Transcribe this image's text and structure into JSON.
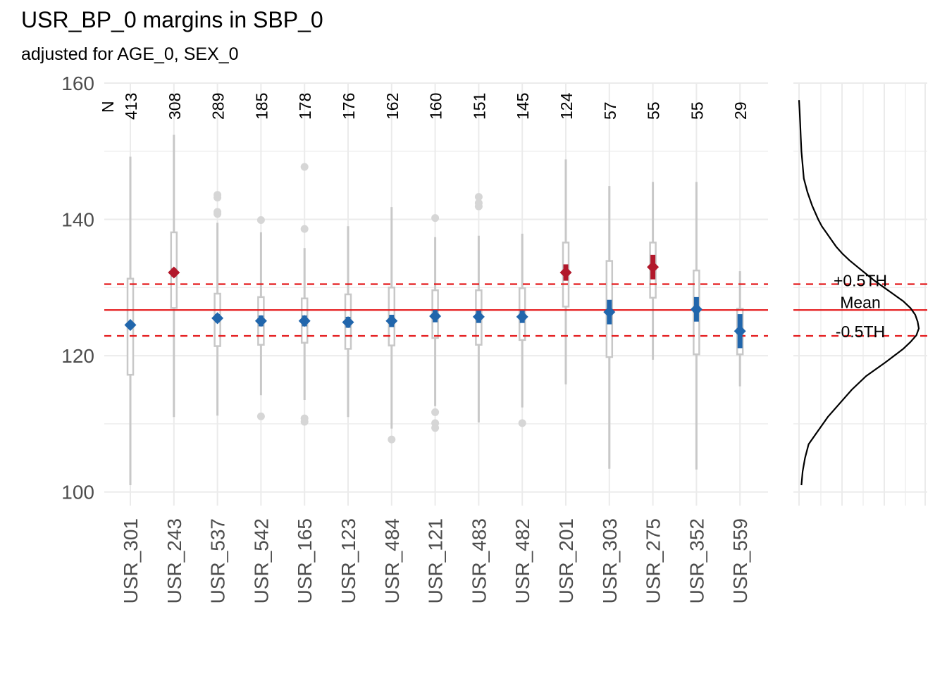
{
  "chart_data": {
    "type": "boxplot",
    "title": "USR_BP_0 margins in SBP_0",
    "subtitle": "adjusted for AGE_0, SEX_0",
    "n_header": "N",
    "ylim": [
      98,
      160
    ],
    "yticks": [
      100,
      120,
      140,
      160
    ],
    "colors": {
      "above": "#b2182b",
      "below": "#2166ac",
      "reference": "#e41a1c",
      "box": "#c8c8c8",
      "grid": "#ebebeb",
      "density": "#000000"
    },
    "reference": {
      "mean": 126.7,
      "upper": 130.5,
      "lower": 122.9,
      "labels": {
        "upper": "+0.5TH",
        "mean": "Mean",
        "lower": "-0.5TH"
      }
    },
    "groups": [
      {
        "name": "USR_301",
        "n": "413",
        "estimate": 124.5,
        "ci": [
          124.0,
          125.0
        ],
        "q1": 117.2,
        "q3": 131.3,
        "wlo": 101.0,
        "whi": 149.2,
        "outliers": [],
        "flag": "below"
      },
      {
        "name": "USR_243",
        "n": "308",
        "estimate": 132.2,
        "ci": [
          131.6,
          132.8
        ],
        "q1": 127.0,
        "q3": 138.1,
        "wlo": 111.0,
        "whi": 152.4,
        "outliers": [],
        "flag": "above"
      },
      {
        "name": "USR_537",
        "n": "289",
        "estimate": 125.5,
        "ci": [
          124.9,
          126.1
        ],
        "q1": 121.4,
        "q3": 129.1,
        "wlo": 111.2,
        "whi": 139.5,
        "outliers": [
          143.6,
          143.2,
          141.1,
          140.8
        ],
        "flag": "below"
      },
      {
        "name": "USR_542",
        "n": "185",
        "estimate": 125.1,
        "ci": [
          124.3,
          125.9
        ],
        "q1": 121.6,
        "q3": 128.6,
        "wlo": 114.2,
        "whi": 138.1,
        "outliers": [
          139.9,
          111.1
        ],
        "flag": "below"
      },
      {
        "name": "USR_165",
        "n": "178",
        "estimate": 125.1,
        "ci": [
          124.3,
          125.9
        ],
        "q1": 121.9,
        "q3": 128.4,
        "wlo": 113.5,
        "whi": 135.8,
        "outliers": [
          147.7,
          138.6,
          110.8,
          110.3
        ],
        "flag": "below"
      },
      {
        "name": "USR_123",
        "n": "176",
        "estimate": 124.9,
        "ci": [
          124.1,
          125.7
        ],
        "q1": 121.0,
        "q3": 129.0,
        "wlo": 111.0,
        "whi": 139.0,
        "outliers": [],
        "flag": "below"
      },
      {
        "name": "USR_484",
        "n": "162",
        "estimate": 125.1,
        "ci": [
          124.2,
          126.0
        ],
        "q1": 121.5,
        "q3": 130.0,
        "wlo": 109.3,
        "whi": 141.8,
        "outliers": [
          107.7
        ],
        "flag": "below"
      },
      {
        "name": "USR_121",
        "n": "160",
        "estimate": 125.8,
        "ci": [
          124.9,
          126.7
        ],
        "q1": 122.6,
        "q3": 129.6,
        "wlo": 112.6,
        "whi": 137.4,
        "outliers": [
          140.2,
          111.7,
          110.1,
          109.4
        ],
        "flag": "below"
      },
      {
        "name": "USR_483",
        "n": "151",
        "estimate": 125.7,
        "ci": [
          124.8,
          126.6
        ],
        "q1": 121.6,
        "q3": 129.6,
        "wlo": 110.2,
        "whi": 137.6,
        "outliers": [
          143.3,
          142.4,
          141.9
        ],
        "flag": "below"
      },
      {
        "name": "USR_482",
        "n": "145",
        "estimate": 125.7,
        "ci": [
          124.8,
          126.6
        ],
        "q1": 122.3,
        "q3": 129.9,
        "wlo": 112.4,
        "whi": 137.9,
        "outliers": [
          110.1
        ],
        "flag": "below"
      },
      {
        "name": "USR_201",
        "n": "124",
        "estimate": 132.2,
        "ci": [
          131.0,
          133.4
        ],
        "q1": 127.2,
        "q3": 136.6,
        "wlo": 115.8,
        "whi": 148.8,
        "outliers": [],
        "flag": "above"
      },
      {
        "name": "USR_303",
        "n": "57",
        "estimate": 126.4,
        "ci": [
          124.6,
          128.2
        ],
        "q1": 119.8,
        "q3": 133.9,
        "wlo": 103.4,
        "whi": 144.9,
        "outliers": [],
        "flag": "below"
      },
      {
        "name": "USR_275",
        "n": "55",
        "estimate": 133.0,
        "ci": [
          131.2,
          134.8
        ],
        "q1": 128.5,
        "q3": 136.6,
        "wlo": 119.4,
        "whi": 145.5,
        "outliers": [],
        "flag": "above"
      },
      {
        "name": "USR_352",
        "n": "55",
        "estimate": 126.8,
        "ci": [
          125.0,
          128.6
        ],
        "q1": 120.2,
        "q3": 132.5,
        "wlo": 103.3,
        "whi": 145.5,
        "outliers": [],
        "flag": "below"
      },
      {
        "name": "USR_559",
        "n": "29",
        "estimate": 123.6,
        "ci": [
          121.1,
          126.1
        ],
        "q1": 120.2,
        "q3": 126.9,
        "wlo": 115.5,
        "whi": 132.4,
        "outliers": [],
        "flag": "below"
      }
    ],
    "density": {
      "y": [
        101,
        103,
        105,
        107,
        109,
        111,
        113,
        115,
        117,
        119,
        121,
        122,
        123,
        124,
        125,
        126,
        127,
        128,
        129,
        130,
        131,
        132,
        133,
        134,
        135,
        136,
        137,
        138,
        139,
        140,
        142,
        144,
        146,
        148,
        150,
        152,
        154,
        156,
        157.5
      ],
      "d": [
        0.02,
        0.03,
        0.05,
        0.08,
        0.16,
        0.24,
        0.34,
        0.44,
        0.56,
        0.72,
        0.87,
        0.93,
        0.98,
        1.0,
        0.99,
        0.97,
        0.93,
        0.87,
        0.79,
        0.71,
        0.63,
        0.56,
        0.49,
        0.42,
        0.36,
        0.31,
        0.27,
        0.23,
        0.19,
        0.16,
        0.11,
        0.07,
        0.04,
        0.03,
        0.02,
        0.015,
        0.01,
        0.005,
        0.0
      ]
    }
  }
}
